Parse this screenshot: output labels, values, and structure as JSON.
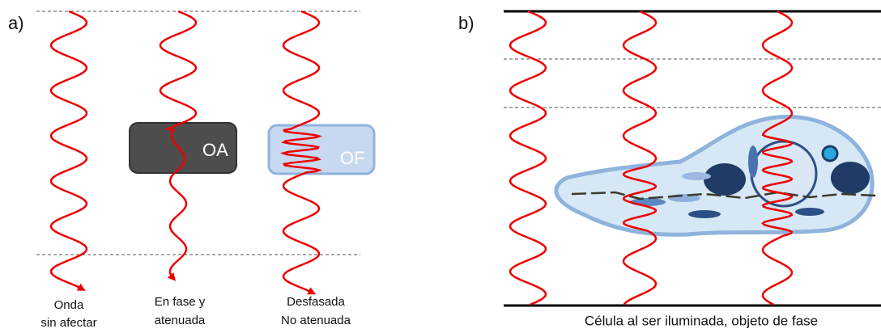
{
  "panel_a": {
    "label": "a)",
    "boxes": [
      "OA",
      "OF"
    ],
    "captions": [
      [
        "Onda",
        "sin afectar"
      ],
      [
        "En fase y",
        "atenuada"
      ],
      [
        "Desfasada",
        "No atenuada"
      ]
    ]
  },
  "panel_b": {
    "label": "b)",
    "caption": "Célula al ser iluminada, objeto de fase"
  }
}
